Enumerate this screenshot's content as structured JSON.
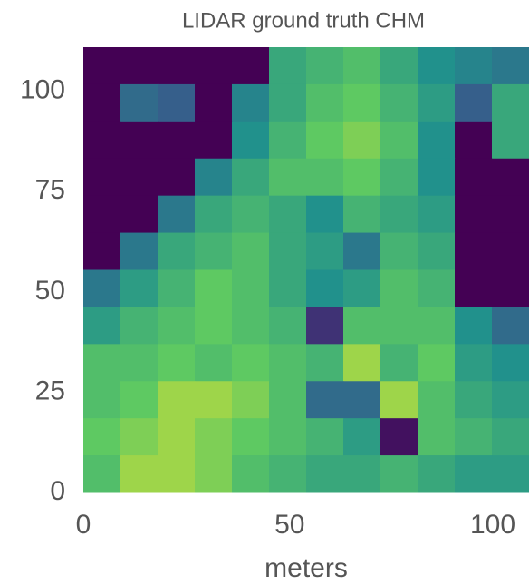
{
  "chart_data": {
    "type": "heatmap",
    "title": "LIDAR ground truth CHM",
    "x_label": "meters",
    "xlim": [
      0,
      108
    ],
    "ylim": [
      0,
      111
    ],
    "xticks": [
      0,
      50,
      100
    ],
    "yticks": [
      0,
      25,
      50,
      75,
      100
    ],
    "colormap": "viridis",
    "zlim": [
      0,
      1
    ],
    "grid": false,
    "z": [
      [
        0,
        0,
        0,
        0,
        0,
        0.6,
        0.65,
        0.7,
        0.6,
        0.5,
        0.45,
        0.4
      ],
      [
        0,
        0.35,
        0.3,
        0,
        0.45,
        0.6,
        0.7,
        0.75,
        0.65,
        0.55,
        0.3,
        0.6
      ],
      [
        0,
        0,
        0,
        0,
        0.5,
        0.65,
        0.75,
        0.8,
        0.7,
        0.5,
        0,
        0.6
      ],
      [
        0,
        0,
        0,
        0.45,
        0.6,
        0.7,
        0.7,
        0.75,
        0.65,
        0.5,
        0,
        0
      ],
      [
        0,
        0,
        0.4,
        0.6,
        0.65,
        0.6,
        0.5,
        0.65,
        0.6,
        0.55,
        0,
        0
      ],
      [
        0,
        0.4,
        0.6,
        0.65,
        0.7,
        0.6,
        0.55,
        0.4,
        0.65,
        0.6,
        0,
        0
      ],
      [
        0.4,
        0.55,
        0.65,
        0.75,
        0.7,
        0.6,
        0.5,
        0.55,
        0.7,
        0.65,
        0,
        0
      ],
      [
        0.55,
        0.65,
        0.7,
        0.75,
        0.7,
        0.65,
        0.15,
        0.7,
        0.7,
        0.7,
        0.5,
        0.35
      ],
      [
        0.7,
        0.7,
        0.75,
        0.7,
        0.75,
        0.7,
        0.65,
        0.85,
        0.65,
        0.75,
        0.55,
        0.5
      ],
      [
        0.7,
        0.75,
        0.85,
        0.85,
        0.8,
        0.7,
        0.35,
        0.35,
        0.85,
        0.7,
        0.6,
        0.55
      ],
      [
        0.75,
        0.8,
        0.85,
        0.8,
        0.75,
        0.7,
        0.65,
        0.55,
        0.05,
        0.7,
        0.65,
        0.6
      ],
      [
        0.7,
        0.85,
        0.85,
        0.8,
        0.7,
        0.65,
        0.6,
        0.6,
        0.65,
        0.6,
        0.55,
        0.55
      ]
    ]
  }
}
